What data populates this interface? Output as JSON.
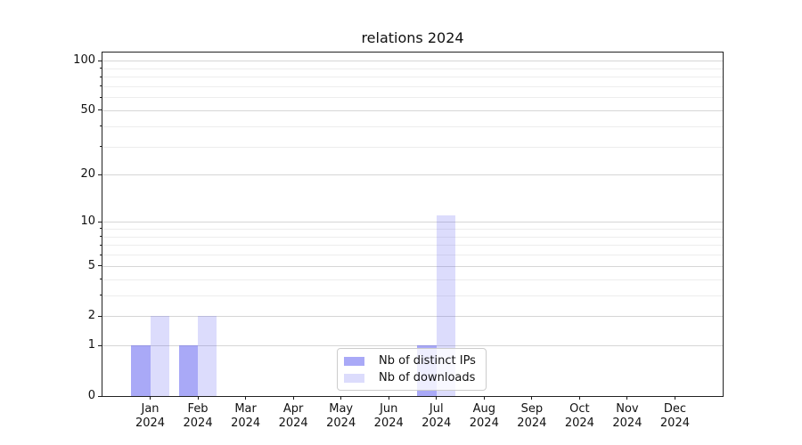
{
  "chart_data": {
    "type": "bar",
    "title": "relations 2024",
    "categories": [
      "Jan 2024",
      "Feb 2024",
      "Mar 2024",
      "Apr 2024",
      "May 2024",
      "Jun 2024",
      "Jul 2024",
      "Aug 2024",
      "Sep 2024",
      "Oct 2024",
      "Nov 2024",
      "Dec 2024"
    ],
    "series": [
      {
        "name": "Nb of distinct IPs",
        "values": [
          1,
          1,
          0,
          0,
          0,
          0,
          1,
          0,
          0,
          0,
          0,
          0
        ],
        "color": "rgba(90,90,240,0.52)"
      },
      {
        "name": "Nb of downloads",
        "values": [
          2,
          2,
          0,
          0,
          0,
          0,
          11,
          0,
          0,
          0,
          0,
          0
        ],
        "color": "rgba(90,90,240,0.21)"
      }
    ],
    "y_scale": "log1p",
    "ylim": [
      0,
      112
    ],
    "y_ticks": [
      0,
      1,
      2,
      5,
      10,
      20,
      50,
      100
    ],
    "y_minor_ticks": [
      3,
      4,
      6,
      7,
      8,
      9,
      30,
      40,
      60,
      70,
      80,
      90
    ],
    "xlabel": "",
    "ylabel": "",
    "grid": "horizontal-only",
    "legend_position": "lower center",
    "colors": {
      "distinct_ips_bar": "rgba(90,90,240,0.52)",
      "downloads_bar": "rgba(90,90,240,0.21)",
      "grid_major": "#d6d6d6",
      "grid_minor": "#ededed",
      "axis_spine": "#222222",
      "tick_text": "#111111",
      "legend_border": "#cccccc"
    }
  }
}
